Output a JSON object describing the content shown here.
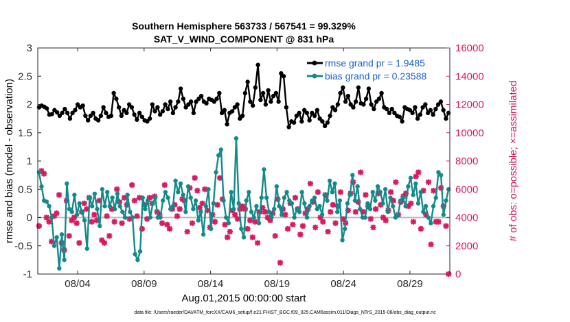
{
  "chart_data": {
    "type": "line",
    "title_line1": "Southern Hemisphere 563733 / 567541 = 99.329%",
    "title_line2": "SAT_V_WIND_COMPONENT @ 831 hPa",
    "xlabel": "Aug.01,2015 00:00:00 start",
    "ylabel_left": "rmse and bias (model - observation)",
    "ylabel_right": "# of obs: o=possible; ×=assimilated",
    "xlim": [
      0,
      31
    ],
    "ylim_left": [
      -1,
      3
    ],
    "ylim_right": [
      0,
      16000
    ],
    "left_ticks": [
      "-1",
      "-0.5",
      "0",
      "0.5",
      "1",
      "1.5",
      "2",
      "2.5",
      "3"
    ],
    "right_ticks": [
      "0",
      "2000",
      "4000",
      "6000",
      "8000",
      "10000",
      "12000",
      "14000",
      "16000"
    ],
    "x_ticks": [
      {
        "x": 3,
        "label": "08/04"
      },
      {
        "x": 8,
        "label": "08/09"
      },
      {
        "x": 13,
        "label": "08/14"
      },
      {
        "x": 18,
        "label": "08/19"
      },
      {
        "x": 23,
        "label": "08/24"
      },
      {
        "x": 28,
        "label": "08/29"
      }
    ],
    "series": [
      {
        "name": "rmse grand pr = 1.9485",
        "color": "#000000",
        "axis": "left",
        "values": [
          1.95,
          1.98,
          1.96,
          1.93,
          1.82,
          1.83,
          1.9,
          1.86,
          1.8,
          1.85,
          1.92,
          1.85,
          1.75,
          1.85,
          1.9,
          2.0,
          1.95,
          1.98,
          1.8,
          1.72,
          1.8,
          1.85,
          1.75,
          1.72,
          1.8,
          1.95,
          1.85,
          1.78,
          1.8,
          2.2,
          2.1,
          1.95,
          1.8,
          1.9,
          1.85,
          2.0,
          1.95,
          1.82,
          1.73,
          1.85,
          1.78,
          1.72,
          1.7,
          1.75,
          2.0,
          1.88,
          1.95,
          1.82,
          1.88,
          2.0,
          1.92,
          2.05,
          1.85,
          1.95,
          2.05,
          2.28,
          2.1,
          1.95,
          2.0,
          2.05,
          1.85,
          2.05,
          2.1,
          2.15,
          2.05,
          2.02,
          2.1,
          2.08,
          2.05,
          2.1,
          2.2,
          1.85,
          1.9,
          1.65,
          1.85,
          1.88,
          1.95,
          2.0,
          1.75,
          1.8,
          2.2,
          2.4,
          2.05,
          1.98,
          2.3,
          2.7,
          2.08,
          2.2,
          2.0,
          2.25,
          2.05,
          2.15,
          2.2,
          2.05,
          2.55,
          2.5,
          1.95,
          1.6,
          1.7,
          1.68,
          1.8,
          1.85,
          1.7,
          1.9,
          1.85,
          1.72,
          1.85,
          1.8,
          1.9,
          1.75,
          1.7,
          1.62,
          1.68,
          1.8,
          1.95,
          1.9,
          2.0,
          2.2,
          2.3,
          2.05,
          2.15,
          2.0,
          1.95,
          2.05,
          2.3,
          2.02,
          2.0,
          2.1,
          2.28,
          2.0,
          1.92,
          2.05,
          2.1,
          2.2,
          1.95,
          1.92,
          1.85,
          1.92,
          1.85,
          1.8,
          1.78,
          1.7,
          1.95,
          1.92,
          1.9,
          1.85,
          1.95,
          1.75,
          1.82,
          1.95,
          2.0,
          1.85,
          1.9,
          1.82,
          1.92,
          2.0,
          2.05,
          1.9,
          1.75,
          1.85
        ]
      },
      {
        "name": "bias grand pr = 0.23588",
        "color": "#138a8a",
        "axis": "left",
        "values": [
          0.8,
          0.55,
          0.3,
          0.28,
          0.2,
          0.0,
          -0.5,
          -0.35,
          -0.9,
          -0.3,
          -0.75,
          0.6,
          0.15,
          0.1,
          0.4,
          0.05,
          0.25,
          0.1,
          -0.05,
          -0.55,
          0.35,
          0.2,
          0.42,
          0.15,
          -0.15,
          0.5,
          0.2,
          0.45,
          0.2,
          0.35,
          0.15,
          0.42,
          0.2,
          0.1,
          0.0,
          0.4,
          0.1,
          0.0,
          -0.65,
          -0.75,
          -0.6,
          0.35,
          0.15,
          0.3,
          0.0,
          0.25,
          0.35,
          0.0,
          0.0,
          0.3,
          0.45,
          0.35,
          0.15,
          0.2,
          0.65,
          0.45,
          0.6,
          0.4,
          0.1,
          0.55,
          0.35,
          0.15,
          0.3,
          -0.05,
          0.1,
          -0.3,
          0.2,
          0.5,
          -0.2,
          0.25,
          0.8,
          1.1,
          1.2,
          0.3,
          0.0,
          -0.1,
          0.45,
          0.15,
          1.4,
          0.25,
          -0.2,
          -0.35,
          0.3,
          0.45,
          0.1,
          0.0,
          0.2,
          -0.1,
          0.35,
          0.85,
          0.35,
          0.1,
          0.0,
          0.15,
          0.55,
          0.2,
          0.05,
          0.35,
          0.45,
          0.3,
          0.25,
          0.0,
          0.15,
          0.1,
          0.45,
          0.25,
          0.0,
          0.2,
          0.3,
          0.35,
          0.15,
          0.2,
          0.05,
          0.4,
          0.3,
          0.65,
          0.45,
          0.6,
          0.1,
          0.3,
          -0.4,
          -0.2,
          0.25,
          0.4,
          0.75,
          0.3,
          0.55,
          0.15,
          0.0,
          0.0,
          0.25,
          0.15,
          0.45,
          0.3,
          0.55,
          0.45,
          0.25,
          0.5,
          0.1,
          0.35,
          0.2,
          0.0,
          0.05,
          0.3,
          0.35,
          0.2,
          0.55,
          0.7,
          0.4,
          0.6,
          0.25,
          0.45,
          0.1,
          0.2,
          0.0,
          -0.1,
          0.2,
          0.35,
          0.8,
          0.75,
          0.05,
          0.3,
          0.5
        ]
      },
      {
        "name": "# of obs assimilated",
        "color": "#d81b60",
        "axis": "right",
        "values": [
          3400,
          7300,
          7100,
          4000,
          3700,
          2300,
          4100,
          4300,
          5600,
          2200,
          1700,
          5200,
          2700,
          3800,
          4000,
          3600,
          2200,
          4400,
          5000,
          4600,
          5400,
          3700,
          4200,
          3800,
          5200,
          2400,
          2200,
          4100,
          2700,
          4600,
          3700,
          6000,
          5100,
          3600,
          5400,
          4900,
          3900,
          6300,
          5200,
          4100,
          5400,
          3200,
          4900,
          3900,
          5400,
          5000,
          5500,
          4400,
          4200,
          3600,
          6300,
          3500,
          3200,
          4600,
          4900,
          4100,
          4600,
          5300,
          5200,
          3000,
          6100,
          3600,
          6800,
          5900,
          4700,
          5000,
          6000,
          4500,
          3300,
          4200,
          3700,
          4900,
          6800,
          5300,
          3500,
          2600,
          3000,
          4500,
          4200,
          3900,
          4600,
          4800,
          4600,
          3200,
          3800,
          2600,
          3700,
          2200,
          4400,
          4700,
          4400,
          4000,
          3800,
          4300,
          2700,
          5300,
          800,
          4600,
          4200,
          3200,
          5000,
          3500,
          5400,
          4600,
          2800,
          3400,
          4300,
          4600,
          6400,
          5100,
          3300,
          5800,
          4000,
          3700,
          5600,
          3000,
          4400,
          4900,
          3600,
          4800,
          5800,
          3900,
          3600,
          4500,
          5700,
          6500,
          4400,
          5100,
          7200,
          4400,
          5600,
          4800,
          3900,
          3300,
          4600,
          5700,
          4900,
          4000,
          3800,
          4500,
          5800,
          5200,
          6500,
          4200,
          5100,
          5500,
          5700,
          4800,
          5000,
          3700,
          6900,
          7200,
          3200,
          5900,
          4200,
          6500,
          2100,
          5900,
          3700,
          3700,
          6100,
          4800,
          3400,
          0
        ]
      }
    ],
    "legend": {
      "placement": "top-right"
    }
  },
  "footer": "data file: /Users/raeder/DAI/ATM_forcXX/CAM6_setup/f.e21.FHIST_BGC.f09_025.CAM6assim.011/Diags_NTrS_2015-08/obs_diag_output.nc"
}
